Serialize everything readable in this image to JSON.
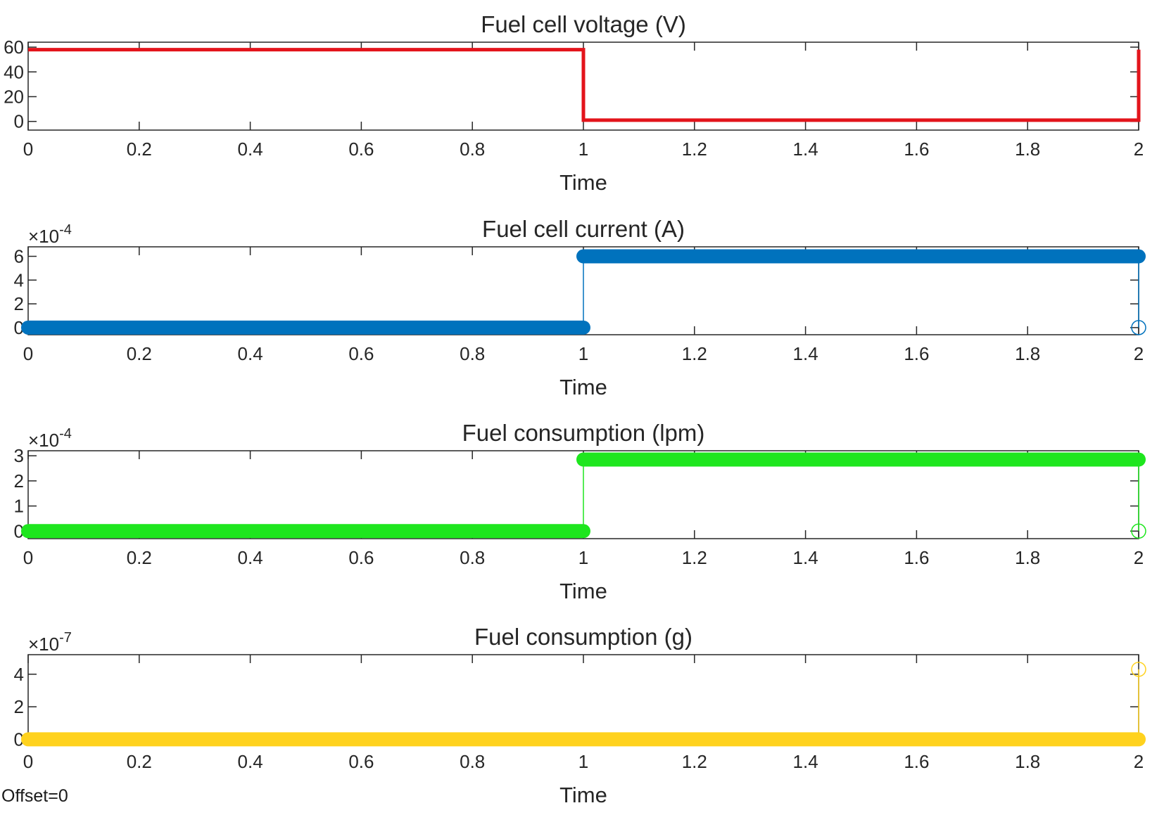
{
  "footer": {
    "offset_text": "Offset=0"
  },
  "chart_data": [
    {
      "type": "line",
      "title": "Fuel cell voltage (V)",
      "xlabel": "Time",
      "ylabel": "",
      "xlim": [
        0,
        2
      ],
      "ylim": [
        -7,
        64
      ],
      "xticks": [
        0,
        0.2,
        0.4,
        0.6,
        0.8,
        1,
        1.2,
        1.4,
        1.6,
        1.8,
        2
      ],
      "xtick_labels": [
        "0",
        "0.2",
        "0.4",
        "0.6",
        "0.8",
        "1",
        "1.2",
        "1.4",
        "1.6",
        "1.8",
        "2"
      ],
      "yticks": [
        0,
        20,
        40,
        60
      ],
      "ytick_labels": [
        "0",
        "20",
        "40",
        "60"
      ],
      "exponent": "",
      "color": "#e3141b",
      "marker": "none",
      "series": [
        {
          "name": "voltage",
          "x": [
            0,
            1,
            1,
            2,
            2
          ],
          "y": [
            58,
            58,
            1,
            1,
            58
          ]
        }
      ]
    },
    {
      "type": "line",
      "title": "Fuel cell current (A)",
      "xlabel": "Time",
      "ylabel": "",
      "xlim": [
        0,
        2
      ],
      "ylim": [
        -0.6,
        6.8
      ],
      "xticks": [
        0,
        0.2,
        0.4,
        0.6,
        0.8,
        1,
        1.2,
        1.4,
        1.6,
        1.8,
        2
      ],
      "xtick_labels": [
        "0",
        "0.2",
        "0.4",
        "0.6",
        "0.8",
        "1",
        "1.2",
        "1.4",
        "1.6",
        "1.8",
        "2"
      ],
      "yticks": [
        0,
        2,
        4,
        6
      ],
      "ytick_labels": [
        "0",
        "2",
        "4",
        "6"
      ],
      "exponent": "-4",
      "color": "#0072bd",
      "marker": "o",
      "series": [
        {
          "name": "current",
          "x": [
            0,
            1,
            1,
            2,
            2
          ],
          "y": [
            0,
            0,
            6,
            6,
            0
          ]
        }
      ]
    },
    {
      "type": "line",
      "title": "Fuel consumption (lpm)",
      "xlabel": "Time",
      "ylabel": "",
      "xlim": [
        0,
        2
      ],
      "ylim": [
        -0.3,
        3.2
      ],
      "xticks": [
        0,
        0.2,
        0.4,
        0.6,
        0.8,
        1,
        1.2,
        1.4,
        1.6,
        1.8,
        2
      ],
      "xtick_labels": [
        "0",
        "0.2",
        "0.4",
        "0.6",
        "0.8",
        "1",
        "1.2",
        "1.4",
        "1.6",
        "1.8",
        "2"
      ],
      "yticks": [
        0,
        1,
        2,
        3
      ],
      "ytick_labels": [
        "0",
        "1",
        "2",
        "3"
      ],
      "exponent": "-4",
      "color": "#1ee61e",
      "marker": "o",
      "series": [
        {
          "name": "lpm",
          "x": [
            0,
            1,
            1,
            2,
            2
          ],
          "y": [
            0,
            0,
            2.85,
            2.85,
            0
          ]
        }
      ]
    },
    {
      "type": "line",
      "title": "Fuel consumption (g)",
      "xlabel": "Time",
      "ylabel": "",
      "xlim": [
        0,
        2
      ],
      "ylim": [
        -0.2,
        5.2
      ],
      "xticks": [
        0,
        0.2,
        0.4,
        0.6,
        0.8,
        1,
        1.2,
        1.4,
        1.6,
        1.8,
        2
      ],
      "xtick_labels": [
        "0",
        "0.2",
        "0.4",
        "0.6",
        "0.8",
        "1",
        "1.2",
        "1.4",
        "1.6",
        "1.8",
        "2"
      ],
      "yticks": [
        0,
        2,
        4
      ],
      "ytick_labels": [
        "0",
        "2",
        "4"
      ],
      "exponent": "-7",
      "color": "#ffd21e",
      "marker": "o",
      "series": [
        {
          "name": "grams",
          "x": [
            0,
            2,
            2
          ],
          "y": [
            0,
            0,
            4.3
          ]
        }
      ]
    }
  ]
}
